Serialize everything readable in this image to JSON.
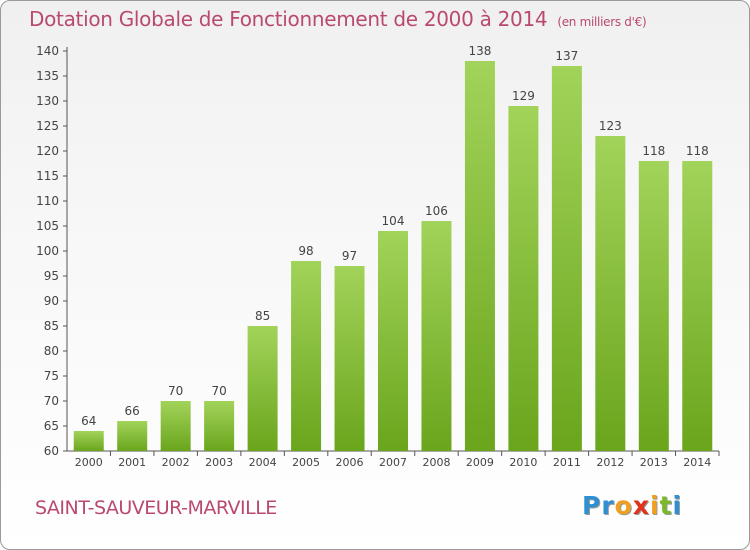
{
  "chart_data": {
    "type": "bar",
    "title": "Dotation Globale de Fonctionnement de 2000 à 2014",
    "subtitle": "(en milliers d'€)",
    "categories": [
      "2000",
      "2001",
      "2002",
      "2003",
      "2004",
      "2005",
      "2006",
      "2007",
      "2008",
      "2009",
      "2010",
      "2011",
      "2012",
      "2013",
      "2014"
    ],
    "values": [
      64,
      66,
      70,
      70,
      85,
      98,
      97,
      104,
      106,
      138,
      129,
      137,
      123,
      118,
      118
    ],
    "data_labels": [
      "64",
      "66",
      "70",
      "70",
      "85",
      "98",
      "97",
      "104",
      "106",
      "138",
      "129",
      "137",
      "123",
      "118",
      "118"
    ],
    "y_ticks": [
      "60",
      "65",
      "70",
      "75",
      "80",
      "85",
      "90",
      "95",
      "100",
      "105",
      "110",
      "115",
      "120",
      "125",
      "130",
      "135",
      "140"
    ],
    "ylim": [
      60,
      140
    ],
    "xlabel": "",
    "ylabel": "",
    "grid": false,
    "colors": {
      "bar_light": "#a2d35a",
      "bar_dark": "#6aa51c",
      "text": "#444444",
      "title": "#b94a6e"
    }
  },
  "footer": {
    "commune": "SAINT-SAUVEUR-MARVILLE",
    "logo_letters": [
      "P",
      "r",
      "o",
      "x",
      "i",
      "t",
      "i"
    ],
    "logo_colors": [
      "#2e8fd1",
      "#2e8fd1",
      "#f0a020",
      "#e0321c",
      "#f0a020",
      "#7ab82c",
      "#2e8fd1"
    ]
  }
}
